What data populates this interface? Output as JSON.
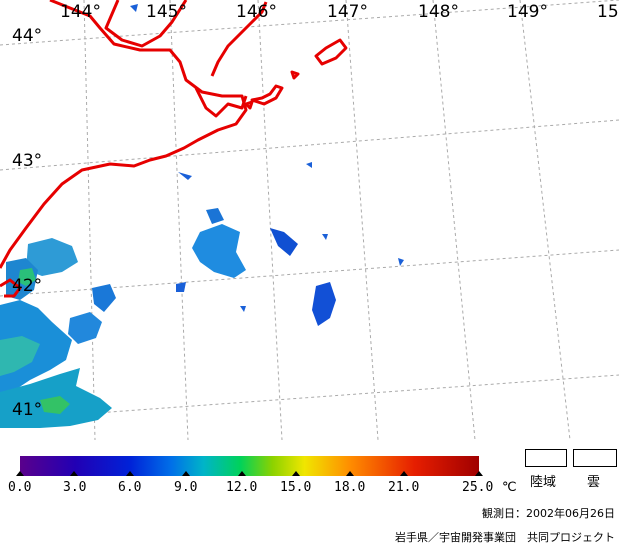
{
  "grid": {
    "lon_labels": [
      "144°",
      "145°",
      "146°",
      "147°",
      "148°",
      "149°",
      "15"
    ],
    "lat_labels": [
      "44°",
      "43°",
      "42°",
      "41°"
    ]
  },
  "colors": {
    "grid": "#aaaaaa",
    "coastline": "#e60000"
  },
  "colorbar": {
    "ticks": [
      "0.0",
      "3.0",
      "6.0",
      "9.0",
      "12.0",
      "15.0",
      "18.0",
      "21.0",
      "25.0"
    ],
    "unit": "℃",
    "colors": [
      "#5a008c",
      "#2200b4",
      "#0022d8",
      "#0070e8",
      "#00b4c8",
      "#00d25a",
      "#8cd200",
      "#f0e600",
      "#ff8c00",
      "#e61e00",
      "#a00000"
    ]
  },
  "legend": {
    "land_label": "陸域",
    "cloud_label": "雲"
  },
  "footer": {
    "observation_date": "観測日：2002年06月26日",
    "credit": "岩手県／宇宙開発事業団　共同プロジェクト"
  }
}
